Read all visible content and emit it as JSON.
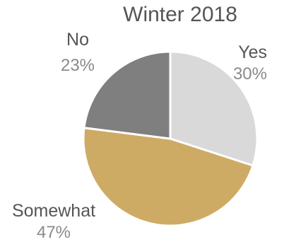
{
  "chart_data": {
    "type": "pie",
    "title": "Winter 2018",
    "categories": [
      "Yes",
      "Somewhat",
      "No"
    ],
    "values": [
      30,
      47,
      23
    ],
    "value_labels": [
      "30%",
      "47%",
      "23%"
    ],
    "colors": [
      "#d9d9d9",
      "#ceab64",
      "#7f7f7f"
    ],
    "start_angle_deg": 0,
    "direction": "clockwise",
    "legend": "none"
  }
}
